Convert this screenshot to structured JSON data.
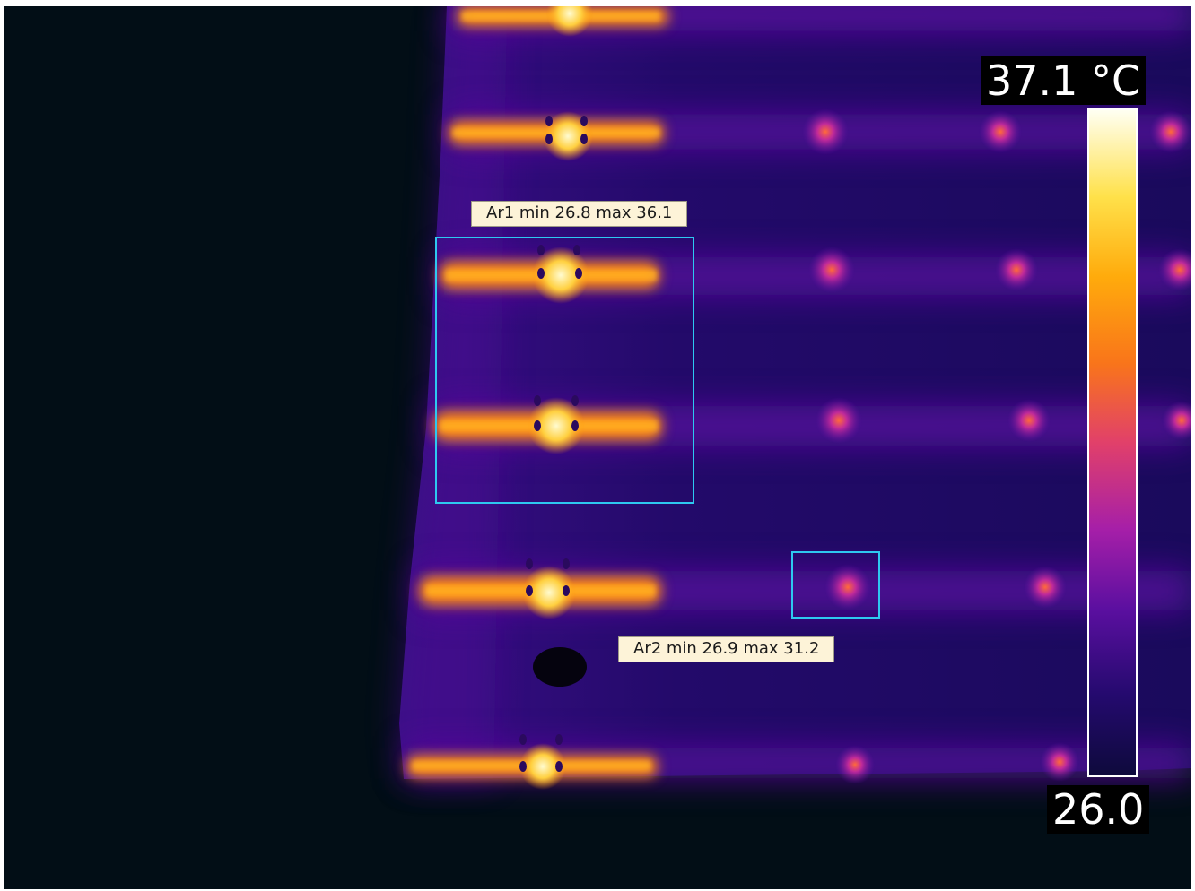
{
  "thermal_image": {
    "areas": [
      {
        "label": "Ar1 min 26.8 max 36.1",
        "outline_color": "#2ec8f0"
      },
      {
        "label": "Ar2 min 26.9 max 31.2",
        "outline_color": "#2ec8f0"
      }
    ]
  },
  "color_scale": {
    "max_label": "37.1 °C",
    "min_label": "26.0",
    "palette": [
      "#fffff2",
      "#ffe14a",
      "#ffab0c",
      "#f9751a",
      "#e1406a",
      "#a61fa8",
      "#5b0fa0",
      "#240a6e",
      "#0e0a3c"
    ]
  }
}
